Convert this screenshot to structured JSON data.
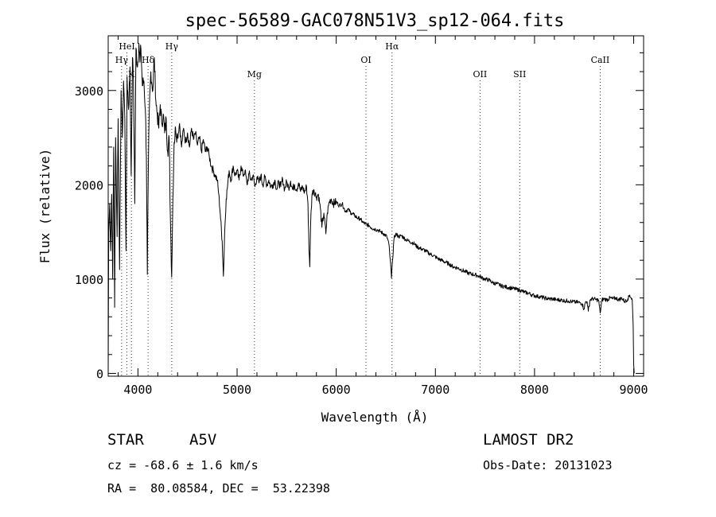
{
  "chart_data": {
    "type": "line",
    "title": "spec-56589-GAC078N51V3_sp12-064.fits",
    "xlabel": "Wavelength (Å)",
    "ylabel": "Flux (relative)",
    "xlim": [
      3700,
      9100
    ],
    "ylim": [
      -30,
      3580
    ],
    "x_ticks": [
      4000,
      5000,
      6000,
      7000,
      8000,
      9000
    ],
    "y_ticks": [
      0,
      1000,
      2000,
      3000
    ],
    "x_tick_labels": [
      "4000",
      "5000",
      "6000",
      "7000",
      "8000",
      "9000"
    ],
    "y_tick_labels": [
      "0",
      "1000",
      "2000",
      "3000"
    ],
    "line_markers": [
      {
        "label": "Hγ",
        "wavelength": 3835,
        "row": 2
      },
      {
        "label": "HeI",
        "wavelength": 3889,
        "row": 1
      },
      {
        "label": "K",
        "wavelength": 3934,
        "row": 3
      },
      {
        "label": "Hδ",
        "wavelength": 4102,
        "row": 2
      },
      {
        "label": "Hγ",
        "wavelength": 4341,
        "row": 1
      },
      {
        "label": "Mg",
        "wavelength": 5175,
        "row": 3
      },
      {
        "label": "OI",
        "wavelength": 6300,
        "row": 2
      },
      {
        "label": "Hα",
        "wavelength": 6563,
        "row": 1
      },
      {
        "label": "OII",
        "wavelength": 7450,
        "row": 3
      },
      {
        "label": "SII",
        "wavelength": 7850,
        "row": 3
      },
      {
        "label": "CaII",
        "wavelength": 8662,
        "row": 2
      }
    ],
    "series": [
      {
        "name": "flux",
        "points": [
          [
            3700,
            0
          ],
          [
            3705,
            1500
          ],
          [
            3715,
            1800
          ],
          [
            3725,
            1300
          ],
          [
            3735,
            1900
          ],
          [
            3745,
            1000
          ],
          [
            3755,
            2400
          ],
          [
            3765,
            700
          ],
          [
            3775,
            2500
          ],
          [
            3790,
            1450
          ],
          [
            3800,
            2700
          ],
          [
            3815,
            1100
          ],
          [
            3830,
            3000
          ],
          [
            3842,
            2500
          ],
          [
            3855,
            3100
          ],
          [
            3868,
            2700
          ],
          [
            3880,
            1300
          ],
          [
            3890,
            3150
          ],
          [
            3905,
            2800
          ],
          [
            3920,
            3250
          ],
          [
            3932,
            2100
          ],
          [
            3945,
            3350
          ],
          [
            3955,
            3100
          ],
          [
            3968,
            1800
          ],
          [
            3980,
            3450
          ],
          [
            3995,
            3250
          ],
          [
            4010,
            3500
          ],
          [
            4020,
            3300
          ],
          [
            4030,
            3450
          ],
          [
            4045,
            3050
          ],
          [
            4060,
            3100
          ],
          [
            4075,
            2800
          ],
          [
            4085,
            2300
          ],
          [
            4095,
            1050
          ],
          [
            4105,
            2200
          ],
          [
            4115,
            2800
          ],
          [
            4130,
            3200
          ],
          [
            4150,
            3000
          ],
          [
            4165,
            3350
          ],
          [
            4180,
            2900
          ],
          [
            4195,
            2750
          ],
          [
            4210,
            2600
          ],
          [
            4225,
            2850
          ],
          [
            4240,
            2650
          ],
          [
            4255,
            2750
          ],
          [
            4270,
            2550
          ],
          [
            4285,
            2700
          ],
          [
            4300,
            2350
          ],
          [
            4315,
            2500
          ],
          [
            4328,
            1600
          ],
          [
            4340,
            1020
          ],
          [
            4352,
            1850
          ],
          [
            4365,
            2450
          ],
          [
            4380,
            2600
          ],
          [
            4400,
            2500
          ],
          [
            4420,
            2650
          ],
          [
            4440,
            2400
          ],
          [
            4460,
            2600
          ],
          [
            4480,
            2450
          ],
          [
            4500,
            2550
          ],
          [
            4520,
            2400
          ],
          [
            4540,
            2600
          ],
          [
            4560,
            2480
          ],
          [
            4580,
            2550
          ],
          [
            4600,
            2420
          ],
          [
            4620,
            2500
          ],
          [
            4640,
            2350
          ],
          [
            4660,
            2480
          ],
          [
            4680,
            2350
          ],
          [
            4700,
            2400
          ],
          [
            4720,
            2300
          ],
          [
            4740,
            2200
          ],
          [
            4760,
            2150
          ],
          [
            4780,
            2100
          ],
          [
            4800,
            2050
          ],
          [
            4815,
            1900
          ],
          [
            4830,
            1700
          ],
          [
            4850,
            1400
          ],
          [
            4862,
            1030
          ],
          [
            4875,
            1500
          ],
          [
            4890,
            1850
          ],
          [
            4905,
            2000
          ],
          [
            4920,
            2150
          ],
          [
            4940,
            2050
          ],
          [
            4960,
            2200
          ],
          [
            4980,
            2100
          ],
          [
            5000,
            2150
          ],
          [
            5020,
            2050
          ],
          [
            5040,
            2200
          ],
          [
            5060,
            2100
          ],
          [
            5080,
            2150
          ],
          [
            5100,
            2000
          ],
          [
            5120,
            2120
          ],
          [
            5140,
            2050
          ],
          [
            5160,
            2100
          ],
          [
            5180,
            1980
          ],
          [
            5200,
            2080
          ],
          [
            5220,
            2020
          ],
          [
            5240,
            2100
          ],
          [
            5260,
            2000
          ],
          [
            5280,
            2080
          ],
          [
            5300,
            2000
          ],
          [
            5320,
            2050
          ],
          [
            5340,
            1980
          ],
          [
            5360,
            2000
          ],
          [
            5380,
            2050
          ],
          [
            5400,
            1950
          ],
          [
            5420,
            2030
          ],
          [
            5440,
            1980
          ],
          [
            5460,
            2060
          ],
          [
            5480,
            1950
          ],
          [
            5500,
            2030
          ],
          [
            5520,
            1970
          ],
          [
            5540,
            2040
          ],
          [
            5560,
            1950
          ],
          [
            5580,
            2000
          ],
          [
            5600,
            1950
          ],
          [
            5620,
            2020
          ],
          [
            5640,
            1930
          ],
          [
            5660,
            1980
          ],
          [
            5680,
            1920
          ],
          [
            5700,
            1980
          ],
          [
            5715,
            1800
          ],
          [
            5725,
            1300
          ],
          [
            5733,
            1130
          ],
          [
            5742,
            1600
          ],
          [
            5755,
            1900
          ],
          [
            5775,
            1950
          ],
          [
            5800,
            1870
          ],
          [
            5820,
            1900
          ],
          [
            5840,
            1750
          ],
          [
            5855,
            1550
          ],
          [
            5875,
            1700
          ],
          [
            5895,
            1480
          ],
          [
            5910,
            1700
          ],
          [
            5930,
            1820
          ],
          [
            5950,
            1850
          ],
          [
            5970,
            1800
          ],
          [
            6000,
            1820
          ],
          [
            6030,
            1780
          ],
          [
            6060,
            1800
          ],
          [
            6090,
            1720
          ],
          [
            6120,
            1740
          ],
          [
            6150,
            1700
          ],
          [
            6180,
            1680
          ],
          [
            6210,
            1650
          ],
          [
            6240,
            1640
          ],
          [
            6270,
            1600
          ],
          [
            6300,
            1580
          ],
          [
            6330,
            1570
          ],
          [
            6360,
            1540
          ],
          [
            6390,
            1530
          ],
          [
            6420,
            1520
          ],
          [
            6450,
            1500
          ],
          [
            6480,
            1480
          ],
          [
            6510,
            1450
          ],
          [
            6530,
            1380
          ],
          [
            6545,
            1200
          ],
          [
            6557,
            1010
          ],
          [
            6568,
            1200
          ],
          [
            6582,
            1420
          ],
          [
            6600,
            1480
          ],
          [
            6630,
            1450
          ],
          [
            6660,
            1460
          ],
          [
            6700,
            1420
          ],
          [
            6740,
            1400
          ],
          [
            6780,
            1380
          ],
          [
            6820,
            1340
          ],
          [
            6860,
            1320
          ],
          [
            6900,
            1300
          ],
          [
            6940,
            1270
          ],
          [
            6980,
            1250
          ],
          [
            7020,
            1220
          ],
          [
            7060,
            1200
          ],
          [
            7100,
            1180
          ],
          [
            7140,
            1160
          ],
          [
            7180,
            1130
          ],
          [
            7220,
            1120
          ],
          [
            7260,
            1100
          ],
          [
            7300,
            1080
          ],
          [
            7340,
            1060
          ],
          [
            7380,
            1050
          ],
          [
            7420,
            1040
          ],
          [
            7460,
            1020
          ],
          [
            7500,
            1000
          ],
          [
            7540,
            990
          ],
          [
            7580,
            960
          ],
          [
            7620,
            950
          ],
          [
            7660,
            930
          ],
          [
            7700,
            920
          ],
          [
            7740,
            910
          ],
          [
            7780,
            900
          ],
          [
            7820,
            890
          ],
          [
            7860,
            880
          ],
          [
            7900,
            860
          ],
          [
            7940,
            850
          ],
          [
            7980,
            830
          ],
          [
            8020,
            820
          ],
          [
            8060,
            810
          ],
          [
            8100,
            800
          ],
          [
            8140,
            790
          ],
          [
            8180,
            790
          ],
          [
            8220,
            780
          ],
          [
            8260,
            780
          ],
          [
            8300,
            770
          ],
          [
            8340,
            770
          ],
          [
            8380,
            760
          ],
          [
            8420,
            755
          ],
          [
            8460,
            750
          ],
          [
            8480,
            740
          ],
          [
            8498,
            680
          ],
          [
            8515,
            760
          ],
          [
            8530,
            760
          ],
          [
            8542,
            660
          ],
          [
            8560,
            780
          ],
          [
            8580,
            790
          ],
          [
            8600,
            790
          ],
          [
            8620,
            780
          ],
          [
            8645,
            780
          ],
          [
            8662,
            640
          ],
          [
            8680,
            780
          ],
          [
            8700,
            790
          ],
          [
            8730,
            780
          ],
          [
            8760,
            800
          ],
          [
            8790,
            790
          ],
          [
            8820,
            800
          ],
          [
            8850,
            780
          ],
          [
            8880,
            800
          ],
          [
            8910,
            760
          ],
          [
            8940,
            790
          ],
          [
            8960,
            830
          ],
          [
            8975,
            800
          ],
          [
            8985,
            780
          ],
          [
            8995,
            500
          ],
          [
            9000,
            100
          ],
          [
            9005,
            0
          ]
        ]
      }
    ]
  },
  "info": {
    "object_class": "STAR",
    "subclass": "A5V",
    "survey": "LAMOST DR2",
    "cz": "cz = -68.6 ± 1.6 km/s",
    "obs_date": "Obs-Date: 20131023",
    "coords": "RA =  80.08584, DEC =  53.22398"
  }
}
